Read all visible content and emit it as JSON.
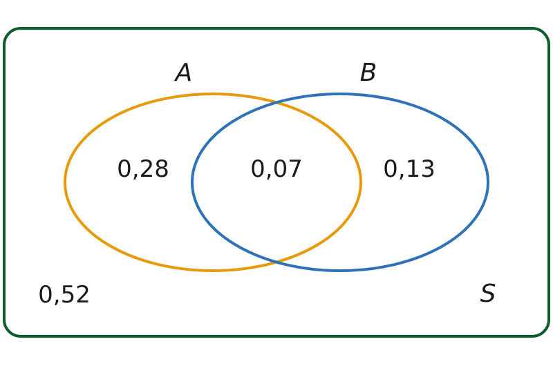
{
  "venn": {
    "universe_label": "S",
    "set_a": {
      "label": "A",
      "color": "#e69b0f"
    },
    "set_b": {
      "label": "B",
      "color": "#2e73b8"
    },
    "frame_color": "#0d5e2b",
    "regions": {
      "only_a": "0,28",
      "a_and_b": "0,07",
      "only_b": "0,13",
      "outside": "0,52"
    }
  }
}
